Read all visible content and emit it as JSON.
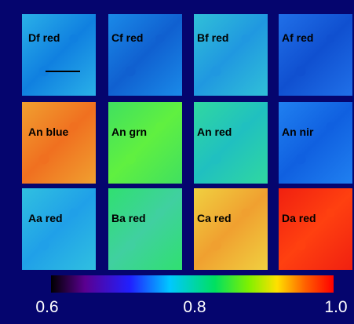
{
  "panels": [
    {
      "label": "Df red"
    },
    {
      "label": "Cf red"
    },
    {
      "label": "Bf red"
    },
    {
      "label": "Af red"
    },
    {
      "label": "An blue"
    },
    {
      "label": "An grn"
    },
    {
      "label": "An red"
    },
    {
      "label": "An nir"
    },
    {
      "label": "Aa red"
    },
    {
      "label": "Ba red"
    },
    {
      "label": "Ca red"
    },
    {
      "label": "Da red"
    }
  ],
  "colorbar": {
    "ticks": [
      "0.6",
      "0.8",
      "1.0"
    ]
  }
}
